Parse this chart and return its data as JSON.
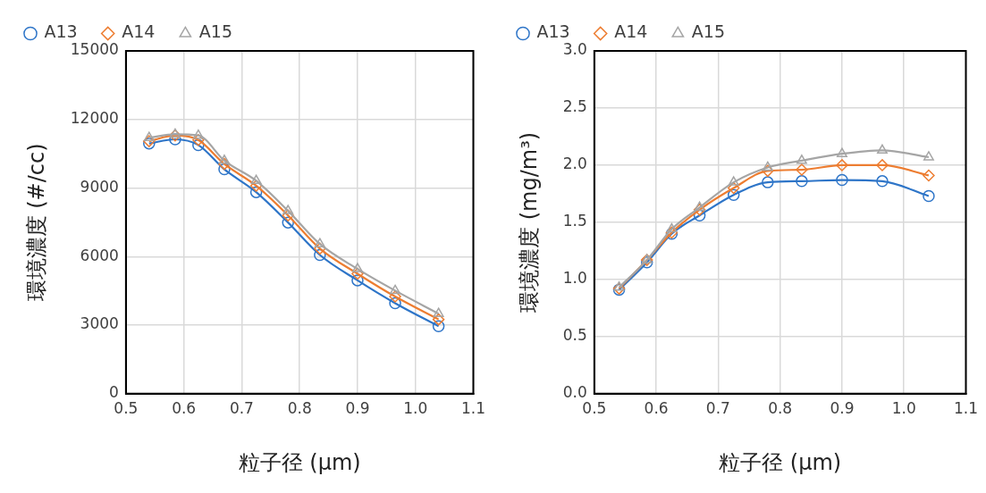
{
  "chart_data": [
    {
      "type": "line",
      "xlabel": "粒子径 (μm)",
      "ylabel": "環境濃度 (#/cc)",
      "legend": "top",
      "grid": true,
      "x": [
        0.54,
        0.585,
        0.625,
        0.67,
        0.725,
        0.78,
        0.835,
        0.9,
        0.965,
        1.04
      ],
      "xlim": [
        0.5,
        1.1
      ],
      "xticks": [
        0.5,
        0.6,
        0.7,
        0.8,
        0.9,
        {
          "value": 1,
          "label": "1.0"
        },
        1.1
      ],
      "ylim": [
        0,
        15000
      ],
      "yticks": [
        0,
        3000,
        6000,
        9000,
        12000,
        15000
      ],
      "series": [
        {
          "name": "A13",
          "color": "#2e75c8",
          "marker": "circle",
          "values": [
            10950,
            11130,
            10880,
            9820,
            8820,
            7490,
            6070,
            4960,
            3960,
            2950
          ]
        },
        {
          "name": "A14",
          "color": "#ed7d31",
          "marker": "diamond",
          "values": [
            11050,
            11300,
            11100,
            10050,
            9100,
            7800,
            6350,
            5250,
            4250,
            3250
          ]
        },
        {
          "name": "A15",
          "color": "#a5a5a5",
          "marker": "triangle",
          "values": [
            11200,
            11350,
            11300,
            10200,
            9320,
            8000,
            6550,
            5460,
            4510,
            3500
          ]
        }
      ]
    },
    {
      "type": "line",
      "xlabel": "粒子径 (μm)",
      "ylabel": "環境濃度 (mg/m³)",
      "legend": "top",
      "grid": true,
      "x": [
        0.54,
        0.585,
        0.625,
        0.67,
        0.725,
        0.78,
        0.835,
        0.9,
        0.965,
        1.04
      ],
      "xlim": [
        0.5,
        1.1
      ],
      "xticks": [
        0.5,
        0.6,
        0.7,
        0.8,
        0.9,
        {
          "value": 1,
          "label": "1.0"
        },
        1.1
      ],
      "ylim": [
        0,
        3
      ],
      "yticks": [
        {
          "value": 0,
          "label": "0.0"
        },
        0.5,
        {
          "value": 1,
          "label": "1.0"
        },
        1.5,
        {
          "value": 2,
          "label": "2.0"
        },
        2.5,
        {
          "value": 3,
          "label": "3.0"
        }
      ],
      "series": [
        {
          "name": "A13",
          "color": "#2e75c8",
          "marker": "circle",
          "values": [
            0.91,
            1.15,
            1.4,
            1.56,
            1.74,
            1.85,
            1.86,
            1.87,
            1.86,
            1.73
          ]
        },
        {
          "name": "A14",
          "color": "#ed7d31",
          "marker": "diamond",
          "values": [
            0.92,
            1.17,
            1.41,
            1.61,
            1.8,
            1.95,
            1.96,
            2.0,
            2.0,
            1.91
          ]
        },
        {
          "name": "A15",
          "color": "#a5a5a5",
          "marker": "triangle",
          "values": [
            0.93,
            1.17,
            1.44,
            1.63,
            1.85,
            1.98,
            2.04,
            2.1,
            2.13,
            2.07
          ]
        }
      ]
    }
  ]
}
